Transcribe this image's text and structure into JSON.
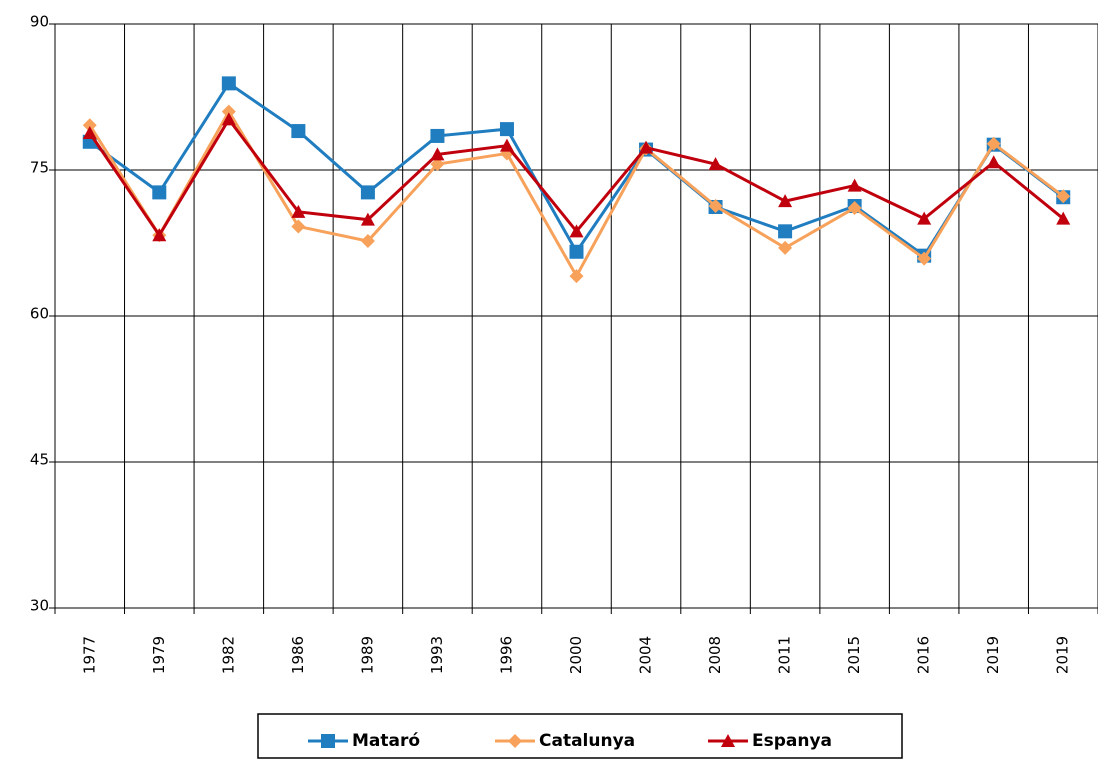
{
  "chart_data": {
    "type": "line",
    "categories": [
      "1977",
      "1979",
      "1982",
      "1986",
      "1989",
      "1993",
      "1996",
      "2000",
      "2004",
      "2008",
      "2011",
      "2015",
      "2016",
      "2019",
      "2019"
    ],
    "series": [
      {
        "name": "Mataró",
        "color": "#1f7dc0",
        "marker": "square",
        "values": [
          77.9,
          72.7,
          83.9,
          79.0,
          72.7,
          78.5,
          79.2,
          66.6,
          77.1,
          71.2,
          68.7,
          71.3,
          66.2,
          77.6,
          72.2
        ]
      },
      {
        "name": "Catalunya",
        "color": "#f7a15a",
        "marker": "diamond",
        "values": [
          79.6,
          68.3,
          81.0,
          69.2,
          67.7,
          75.6,
          76.7,
          64.1,
          77.2,
          71.3,
          67.0,
          71.1,
          65.9,
          77.7,
          72.3
        ]
      },
      {
        "name": "Espanya",
        "color": "#c0000c",
        "marker": "triangle",
        "values": [
          78.8,
          68.3,
          80.2,
          70.7,
          69.9,
          76.6,
          77.5,
          68.7,
          77.3,
          75.6,
          71.8,
          73.4,
          70.0,
          75.8,
          70.0
        ]
      }
    ],
    "ylim": [
      30,
      90
    ],
    "yticks": [
      30,
      45,
      60,
      75,
      90
    ],
    "grid": true,
    "legend": "bottom"
  }
}
